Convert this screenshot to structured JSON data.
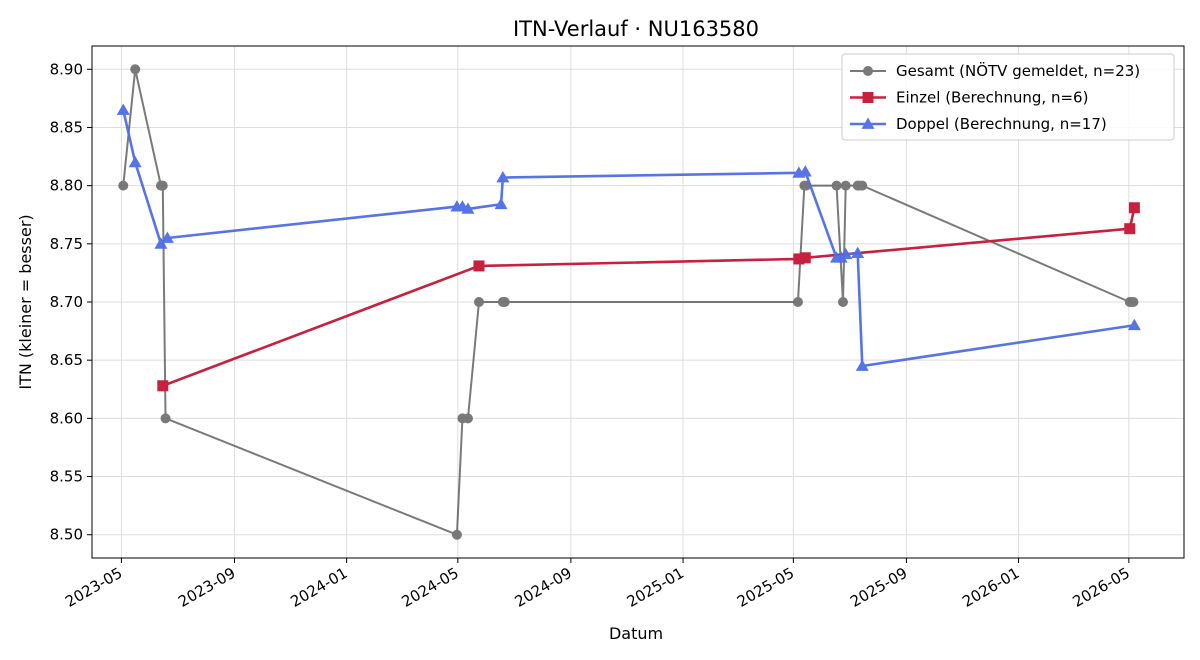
{
  "chart_data": {
    "type": "line",
    "title": "ITN-Verlauf · NU163580",
    "xlabel": "Datum",
    "ylabel": "ITN  (kleiner = besser)",
    "xlim": [
      "2023-03-30",
      "2026-06-30"
    ],
    "ylim": [
      8.48,
      8.92
    ],
    "y_ticks": [
      8.5,
      8.55,
      8.6,
      8.65,
      8.7,
      8.75,
      8.8,
      8.85,
      8.9
    ],
    "y_tick_labels": [
      "8.50",
      "8.55",
      "8.60",
      "8.65",
      "8.70",
      "8.75",
      "8.80",
      "8.85",
      "8.90"
    ],
    "x_ticks": [
      "2023-05-01",
      "2023-09-01",
      "2024-01-01",
      "2024-05-01",
      "2024-09-01",
      "2025-01-01",
      "2025-05-01",
      "2025-09-01",
      "2026-01-01",
      "2026-05-01"
    ],
    "x_tick_labels": [
      "2023-05",
      "2023-09",
      "2024-01",
      "2024-05",
      "2024-09",
      "2025-01",
      "2025-05",
      "2025-09",
      "2026-01",
      "2026-05"
    ],
    "grid": true,
    "legend_position": "top-right",
    "series": [
      {
        "name": "Gesamt (NÖTV gemeldet, n=23)",
        "color": "#555555",
        "marker": "circle",
        "x": [
          "2023-05-03",
          "2023-05-16",
          "2023-06-13",
          "2023-06-15",
          "2023-06-18",
          "2024-04-30",
          "2024-05-06",
          "2024-05-12",
          "2024-05-24",
          "2024-06-19",
          "2024-06-21",
          "2025-05-06",
          "2025-05-13",
          "2025-05-15",
          "2025-06-17",
          "2025-06-24",
          "2025-06-27",
          "2025-07-10",
          "2025-07-12",
          "2025-07-15",
          "2026-05-02",
          "2026-05-04",
          "2026-05-06"
        ],
        "y": [
          8.8,
          8.9,
          8.8,
          8.8,
          8.6,
          8.5,
          8.6,
          8.6,
          8.7,
          8.7,
          8.7,
          8.7,
          8.8,
          8.8,
          8.8,
          8.7,
          8.8,
          8.8,
          8.8,
          8.8,
          8.7,
          8.7,
          8.7
        ]
      },
      {
        "name": "Einzel (Berechnung, n=6)",
        "color": "#c8203f",
        "marker": "square",
        "x": [
          "2023-06-15",
          "2024-05-24",
          "2025-05-07",
          "2025-05-14",
          "2026-05-02",
          "2026-05-07"
        ],
        "y": [
          8.628,
          8.731,
          8.737,
          8.738,
          8.763,
          8.781
        ]
      },
      {
        "name": "Doppel (Berechnung, n=17)",
        "color": "#4f6de6",
        "marker": "triangle",
        "x": [
          "2023-05-03",
          "2023-05-16",
          "2023-06-13",
          "2023-06-20",
          "2024-04-30",
          "2024-05-06",
          "2024-05-12",
          "2024-06-17",
          "2024-06-19",
          "2025-05-07",
          "2025-05-14",
          "2025-06-17",
          "2025-06-22",
          "2025-06-27",
          "2025-07-10",
          "2025-07-15",
          "2026-05-07"
        ],
        "y": [
          8.865,
          8.82,
          8.75,
          8.755,
          8.782,
          8.782,
          8.78,
          8.784,
          8.807,
          8.811,
          8.812,
          8.738,
          8.738,
          8.741,
          8.742,
          8.645,
          8.68
        ]
      }
    ]
  }
}
